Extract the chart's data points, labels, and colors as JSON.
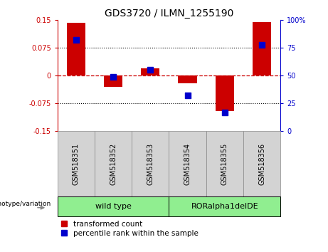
{
  "title": "GDS3720 / ILMN_1255190",
  "samples": [
    "GSM518351",
    "GSM518352",
    "GSM518353",
    "GSM518354",
    "GSM518355",
    "GSM518356"
  ],
  "transformed_count": [
    0.143,
    -0.03,
    0.02,
    -0.02,
    -0.095,
    0.145
  ],
  "percentile_rank": [
    82,
    49,
    55,
    32,
    17,
    78
  ],
  "ylim_left": [
    -0.15,
    0.15
  ],
  "ylim_right": [
    0,
    100
  ],
  "yticks_left": [
    -0.15,
    -0.075,
    0,
    0.075,
    0.15
  ],
  "yticks_right": [
    0,
    25,
    50,
    75,
    100
  ],
  "bar_color": "#CC0000",
  "dot_color": "#0000CC",
  "zero_line_color": "#CC0000",
  "grid_color": "#000000",
  "legend_items": [
    "transformed count",
    "percentile rank within the sample"
  ],
  "xlabel_annotation": "genotype/variation",
  "group1_label": "wild type",
  "group2_label": "RORalpha1delDE",
  "group_color": "#90EE90",
  "xtick_bg": "#D3D3D3",
  "title_fontsize": 10,
  "tick_fontsize": 7,
  "label_fontsize": 8,
  "legend_fontsize": 7.5
}
